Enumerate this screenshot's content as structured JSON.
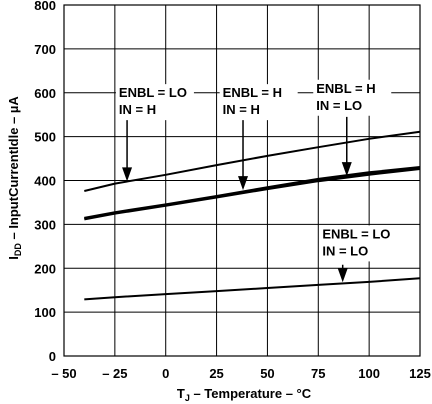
{
  "chart_data": {
    "type": "line",
    "xlabel": "T_J – Temperature – °C",
    "ylabel": "I_DD – InputCurrentIdle – µA",
    "xlim": [
      -50,
      125
    ],
    "ylim": [
      0,
      800
    ],
    "grid": true,
    "x_ticks": [
      "– 50",
      "– 25",
      "0",
      "25",
      "50",
      "75",
      "100",
      "125"
    ],
    "y_ticks": [
      "0",
      "100",
      "200",
      "300",
      "400",
      "500",
      "600",
      "700",
      "800"
    ],
    "series": [
      {
        "name": "ENBL = LO\nIN = H",
        "x": [
          -40,
          -25,
          0,
          25,
          50,
          75,
          100,
          125
        ],
        "y": [
          376,
          393,
          413,
          435,
          456,
          476,
          495,
          511
        ]
      },
      {
        "name": "ENBL = H\nIN = H",
        "x": [
          -40,
          -25,
          0,
          25,
          50,
          75,
          100,
          125
        ],
        "y": [
          312,
          325,
          343,
          362,
          381,
          399,
          414,
          427
        ]
      },
      {
        "name": "ENBL = H\nIN = LO",
        "x": [
          -40,
          -25,
          0,
          25,
          50,
          75,
          100,
          125
        ],
        "y": [
          314,
          327,
          345,
          364,
          384,
          403,
          418,
          430
        ]
      },
      {
        "name": "ENBL = LO\nIN = LO",
        "x": [
          -40,
          -25,
          0,
          25,
          50,
          75,
          100,
          125
        ],
        "y": [
          129,
          134,
          141,
          148,
          155,
          162,
          169,
          177
        ]
      }
    ],
    "annotations": [
      {
        "line1": "ENBL = LO",
        "line2": "IN = H"
      },
      {
        "line1": "ENBL = H",
        "line2": "IN = H"
      },
      {
        "line1": "ENBL = H",
        "line2": "IN = LO"
      },
      {
        "line1": "ENBL = LO",
        "line2": "IN = LO"
      }
    ]
  }
}
